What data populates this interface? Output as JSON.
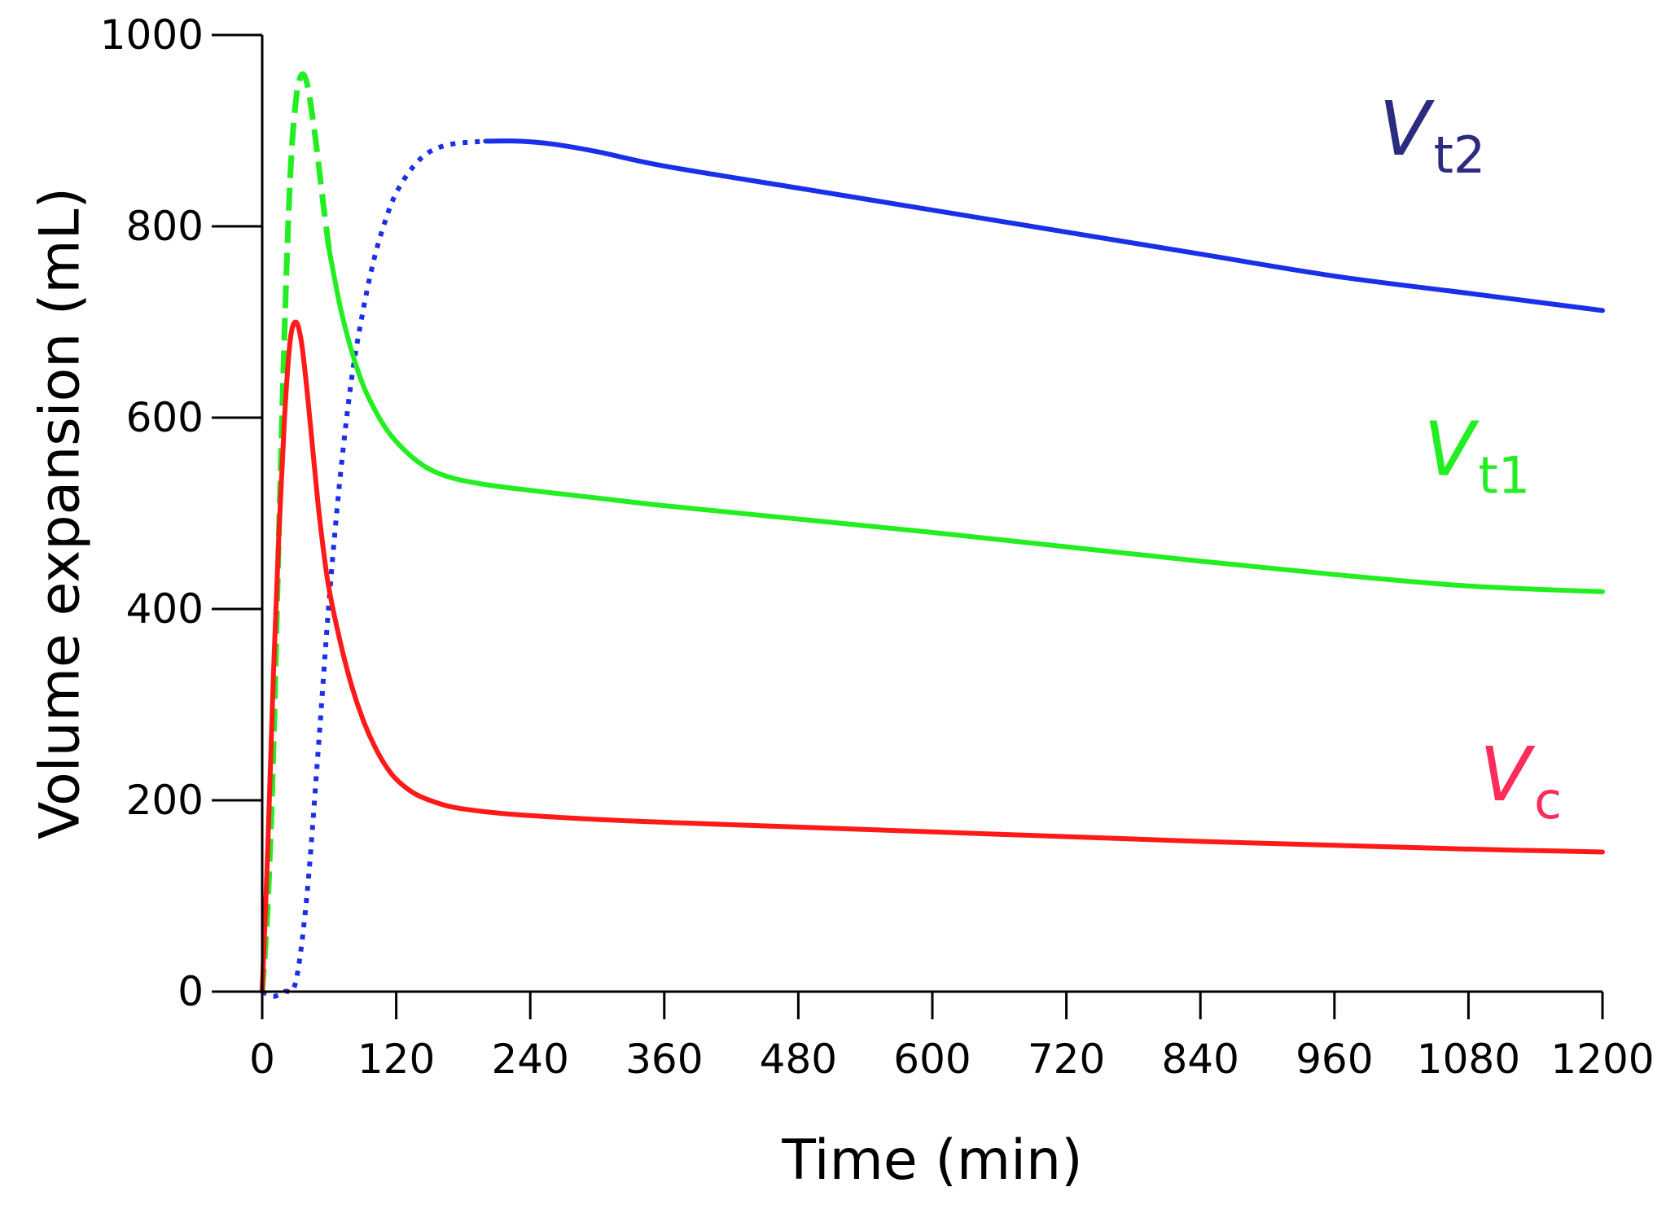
{
  "chart_data": {
    "type": "line",
    "title": "",
    "xlabel": "Time (min)",
    "ylabel": "Volume expansion (mL)",
    "xlim": [
      0,
      1200
    ],
    "ylim": [
      0,
      1000
    ],
    "xticks": [
      0,
      120,
      240,
      360,
      480,
      600,
      720,
      840,
      960,
      1080,
      1200
    ],
    "yticks": [
      0,
      200,
      400,
      600,
      800,
      1000
    ],
    "grid": false,
    "series": [
      {
        "name": "Vc",
        "label_main": "V",
        "label_sub": "c",
        "color": "#ff1a1a",
        "label_color": "#ff2b5a",
        "line_style": "solid",
        "points": [
          [
            0,
            0
          ],
          [
            5,
            150
          ],
          [
            10,
            330
          ],
          [
            15,
            480
          ],
          [
            20,
            600
          ],
          [
            25,
            680
          ],
          [
            30,
            700
          ],
          [
            35,
            680
          ],
          [
            40,
            630
          ],
          [
            45,
            570
          ],
          [
            50,
            510
          ],
          [
            55,
            460
          ],
          [
            60,
            420
          ],
          [
            70,
            365
          ],
          [
            80,
            320
          ],
          [
            90,
            285
          ],
          [
            100,
            258
          ],
          [
            110,
            237
          ],
          [
            120,
            222
          ],
          [
            135,
            208
          ],
          [
            150,
            200
          ],
          [
            170,
            193
          ],
          [
            200,
            188
          ],
          [
            240,
            184
          ],
          [
            300,
            180
          ],
          [
            360,
            177
          ],
          [
            480,
            172
          ],
          [
            600,
            167
          ],
          [
            720,
            162
          ],
          [
            840,
            157
          ],
          [
            960,
            153
          ],
          [
            1080,
            149
          ],
          [
            1200,
            146
          ]
        ]
      },
      {
        "name": "Vt1",
        "label_main": "V",
        "label_sub": "t1",
        "color": "#22ee22",
        "label_color": "#22ee22",
        "line_style": "dashed-then-solid",
        "style_switch_x": 60,
        "points": [
          [
            0,
            0
          ],
          [
            5,
            90
          ],
          [
            10,
            250
          ],
          [
            15,
            480
          ],
          [
            20,
            690
          ],
          [
            25,
            850
          ],
          [
            30,
            930
          ],
          [
            35,
            958
          ],
          [
            40,
            950
          ],
          [
            45,
            915
          ],
          [
            50,
            870
          ],
          [
            55,
            820
          ],
          [
            60,
            775
          ],
          [
            70,
            715
          ],
          [
            80,
            670
          ],
          [
            90,
            635
          ],
          [
            100,
            610
          ],
          [
            110,
            590
          ],
          [
            120,
            575
          ],
          [
            135,
            558
          ],
          [
            150,
            546
          ],
          [
            170,
            537
          ],
          [
            200,
            530
          ],
          [
            240,
            524
          ],
          [
            300,
            516
          ],
          [
            360,
            508
          ],
          [
            480,
            494
          ],
          [
            600,
            480
          ],
          [
            720,
            465
          ],
          [
            840,
            450
          ],
          [
            960,
            436
          ],
          [
            1080,
            424
          ],
          [
            1200,
            418
          ]
        ]
      },
      {
        "name": "Vt2",
        "label_main": "V",
        "label_sub": "t2",
        "color": "#1a2fe8",
        "label_color": "#2b2b80",
        "line_style": "dotted-then-solid",
        "style_switch_x": 200,
        "points": [
          [
            0,
            0
          ],
          [
            10,
            -5
          ],
          [
            20,
            0
          ],
          [
            30,
            10
          ],
          [
            40,
            100
          ],
          [
            50,
            250
          ],
          [
            60,
            410
          ],
          [
            70,
            540
          ],
          [
            80,
            640
          ],
          [
            90,
            710
          ],
          [
            100,
            765
          ],
          [
            110,
            805
          ],
          [
            120,
            835
          ],
          [
            135,
            862
          ],
          [
            150,
            878
          ],
          [
            170,
            886
          ],
          [
            200,
            889
          ],
          [
            230,
            889
          ],
          [
            260,
            886
          ],
          [
            300,
            878
          ],
          [
            360,
            863
          ],
          [
            480,
            840
          ],
          [
            600,
            817
          ],
          [
            720,
            794
          ],
          [
            840,
            771
          ],
          [
            960,
            748
          ],
          [
            1080,
            730
          ],
          [
            1200,
            712
          ]
        ]
      }
    ],
    "annotations": [
      {
        "series": "Vt2",
        "text_main": "V",
        "text_sub": "t2",
        "anchor_data": [
          1000,
          875
        ]
      },
      {
        "series": "Vt1",
        "text_main": "V",
        "text_sub": "t1",
        "anchor_data": [
          1040,
          540
        ]
      },
      {
        "series": "Vc",
        "text_main": "V",
        "text_sub": "c",
        "anchor_data": [
          1090,
          200
        ]
      }
    ]
  }
}
